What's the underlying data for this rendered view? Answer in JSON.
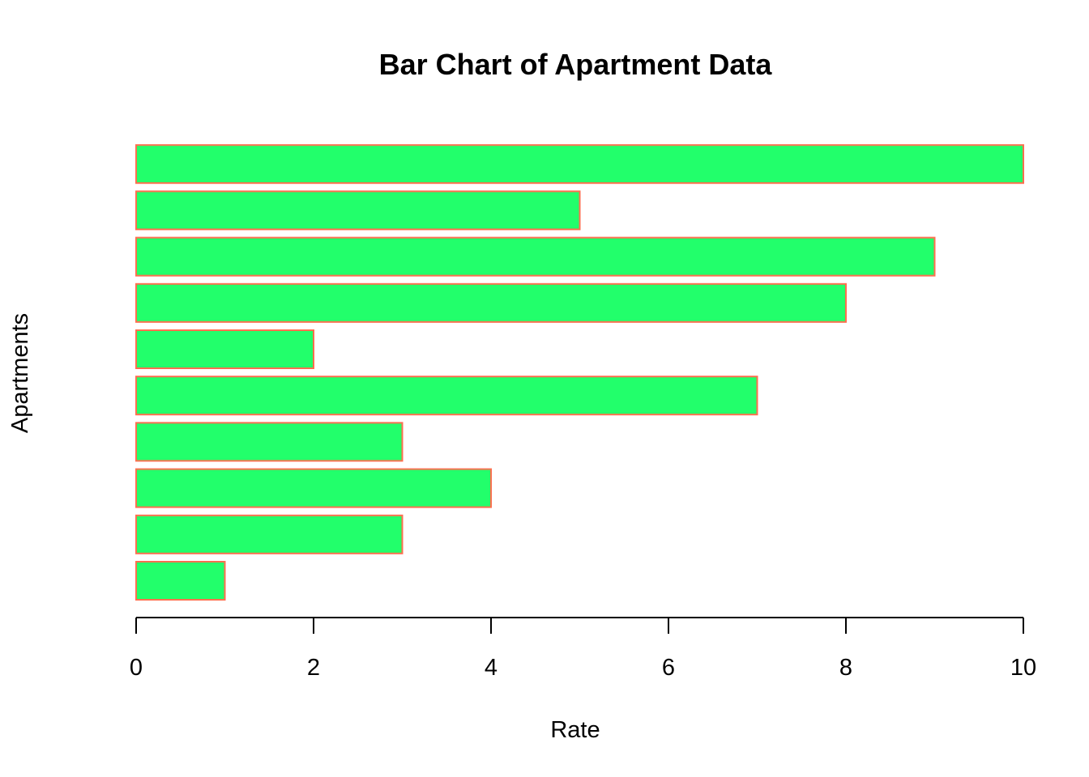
{
  "chart_data": {
    "type": "bar",
    "orientation": "horizontal",
    "title": "Bar Chart of Apartment Data",
    "xlabel": "Rate",
    "ylabel": "Apartments",
    "values": [
      1,
      3,
      4,
      3,
      7,
      2,
      8,
      9,
      5,
      10
    ],
    "xlim": [
      0,
      10
    ],
    "xticks": [
      "0",
      "2",
      "4",
      "6",
      "8",
      "10"
    ],
    "grid": false,
    "legend": "none",
    "bar_fill": "#22ff6b",
    "bar_border": "#ff6f4f"
  }
}
